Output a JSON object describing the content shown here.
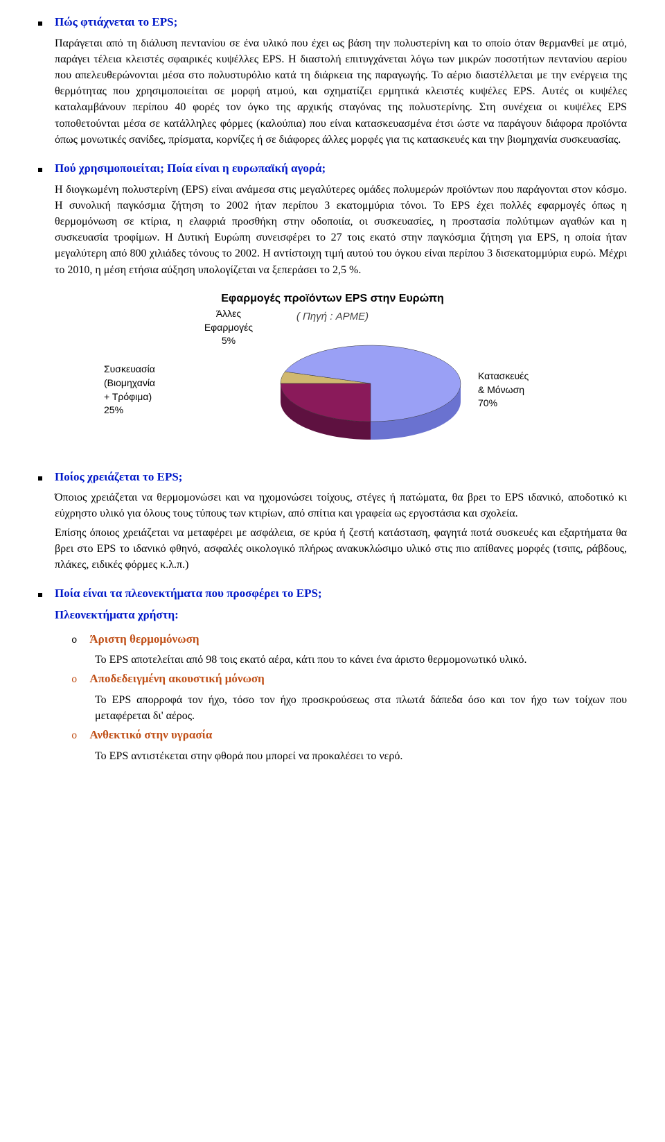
{
  "sections": {
    "q1": {
      "heading": "Πώς φτιάχνεται το EPS;",
      "body": "Παράγεται από τη διάλυση πεντανίου σε ένα υλικό που έχει ως βάση την πολυστερίνη και το οποίο όταν θερμανθεί με ατμό, παράγει τέλεια κλειστές σφαιρικές κυψέλλες EPS. Η διαστολή επιτυγχάνεται λόγω των μικρών ποσοτήτων πεντανίου αερίου που απελευθερώνονται μέσα στο πολυστυρόλιο κατά τη διάρκεια της παραγωγής. Το αέριο διαστέλλεται με την ενέργεια της θερμότητας που χρησιμοποιείται σε μορφή ατμού, και σχηματίζει ερμητικά κλειστές κυψέλες EPS. Αυτές οι κυψέλες καταλαμβάνουν περίπου 40 φορές τον όγκο της αρχικής σταγόνας της πολυστερίνης. Στη συνέχεια οι κυψέλες EPS τοποθετούνται μέσα σε κατάλληλες φόρμες (καλούπια) που είναι κατασκευασμένα έτσι ώστε να παράγουν διάφορα προϊόντα όπως μονωτικές σανίδες, πρίσματα, κορνίζες ή σε διάφορες άλλες μορφές για τις κατασκευές και την βιομηχανία συσκευασίας."
    },
    "q2": {
      "heading": "Πού χρησιμοποιείται; Ποία είναι η ευρωπαϊκή αγορά;",
      "body": "Η διογκωμένη πολυστερίνη (EPS) είναι ανάμεσα στις μεγαλύτερες ομάδες πολυμερών προϊόντων που παράγονται στον κόσμο. Η συνολική παγκόσμια ζήτηση το 2002 ήταν περίπου 3 εκατομμύρια τόνοι. Το EPS έχει πολλές εφαρμογές όπως η θερμομόνωση σε κτίρια, η ελαφριά προσθήκη στην οδοποιία, οι συσκευασίες, η προστασία πολύτιμων αγαθών και η συσκευασία τροφίμων. Η Δυτική Ευρώπη συνεισφέρει το 27 τοις εκατό στην παγκόσμια ζήτηση για EPS, η οποία ήταν μεγαλύτερη από 800 χιλιάδες τόνους το 2002. Η αντίστοιχη τιμή αυτού του όγκου είναι περίπου 3 δισεκατομμύρια ευρώ. Μέχρι το 2010, η μέση ετήσια αύξηση υπολογίζεται να ξεπεράσει το 2,5 %."
    },
    "q3": {
      "heading": "Ποίος χρειάζεται το EPS;",
      "body1": "Όποιος χρειάζεται να θερμομονώσει και να ηχομονώσει τοίχους, στέγες ή πατώματα, θα βρει το EPS ιδανικό, αποδοτικό κι εύχρηστο υλικό για όλους τους τύπους των κτιρίων, από σπίτια και γραφεία ως εργοστάσια και σχολεία.",
      "body2": "Επίσης όποιος χρειάζεται να μεταφέρει με ασφάλεια, σε κρύα ή ζεστή κατάσταση, φαγητά ποτά συσκευές και εξαρτήματα θα βρει στο EPS το ιδανικό φθηνό, ασφαλές οικολογικό πλήρως ανακυκλώσιμο υλικό στις πιο απίθανες μορφές (τσιπς, ράβδους, πλάκες, ειδικές φόρμες κ.λ.π.)"
    },
    "q4": {
      "heading": "Ποία είναι τα πλεονεκτήματα που προσφέρει το EPS;",
      "advantages_title": "Πλεονεκτήματα χρήστη:",
      "items": [
        {
          "title": "Άριστη θερμομόνωση",
          "body": "Το EPS αποτελείται από 98 τοις εκατό αέρα, κάτι που το κάνει ένα άριστο θερμομονωτικό υλικό."
        },
        {
          "title": "Αποδεδειγμένη ακουστική μόνωση",
          "body": "Το EPS απορροφά τον ήχο, τόσο τον ήχο προσκρούσεως στα πλωτά δάπεδα όσο και τον ήχο των τοίχων που μεταφέρεται δι' αέρος."
        },
        {
          "title": "Ανθεκτικό στην υγρασία",
          "body": "Το EPS αντιστέκεται στην φθορά που μπορεί να προκαλέσει το νερό."
        }
      ]
    }
  },
  "chart": {
    "title": "Εφαρμογές προϊόντων EPS στην Ευρώπη",
    "subtitle": "( Πηγή : APME)",
    "type": "pie-3d",
    "background_color": "#ffffff",
    "slices": [
      {
        "label": "Συσκευασία\n(Βιομηχανία\n+ Τρόφιμα)\n25%",
        "value": 25,
        "color": "#8a1a5a",
        "side_color": "#5e1140"
      },
      {
        "label": "Άλλες\nΕφαρμογές\n5%",
        "value": 5,
        "color": "#d0b870",
        "side_color": "#a08a40"
      },
      {
        "label": "Κατασκευές\n& Μόνωση\n70%",
        "value": 70,
        "color": "#9aa0f5",
        "side_color": "#6a72d0"
      }
    ],
    "label_font": "Arial",
    "label_fontsize": 14,
    "title_fontsize": 16
  }
}
